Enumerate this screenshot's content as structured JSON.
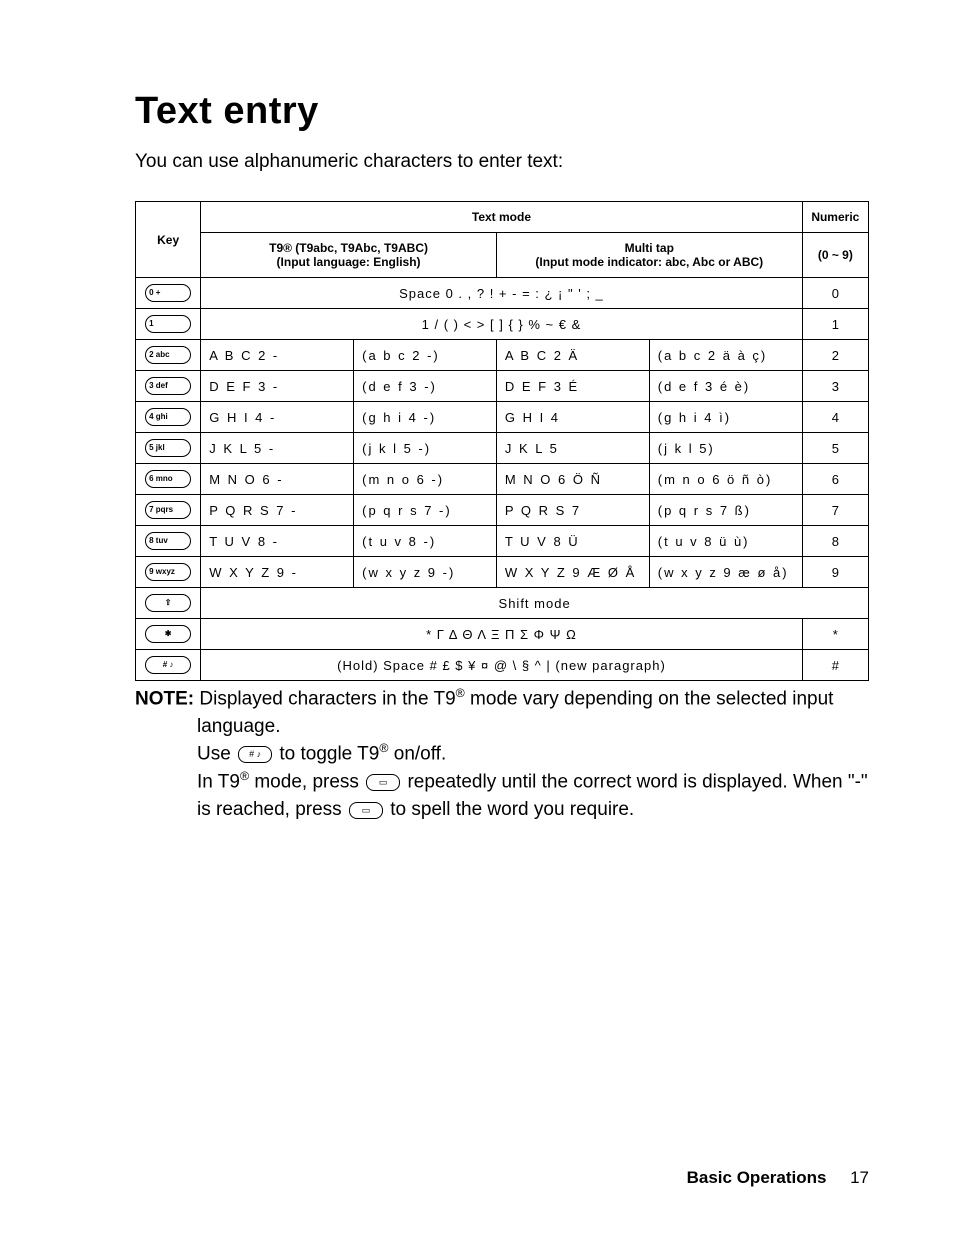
{
  "page": {
    "title": "Text entry",
    "intro": "You can use alphanumeric characters to enter text:",
    "footer_section": "Basic Operations",
    "footer_page": "17"
  },
  "headers": {
    "key": "Key",
    "textmode": "Text mode",
    "numeric": "Numeric",
    "t9_line1": "T9® (T9abc, T9Abc, T9ABC)",
    "t9_line2": "(Input language: English)",
    "multitap_line1": "Multi tap",
    "multitap_line2": "(Input mode indicator: abc, Abc or ABC)",
    "numeric_range": "(0 ~ 9)"
  },
  "keys": {
    "k0": "0   +",
    "k1": "1",
    "k2": "2  abc",
    "k3": "3  def",
    "k4": "4  ghi",
    "k5": "5  jkl",
    "k6": "6  mno",
    "k7": "7 pqrs",
    "k8": "8  tuv",
    "k9": "9 wxyz",
    "kshift": "⇧",
    "kstar": "✱",
    "khash": "# ♪"
  },
  "rows": {
    "r0_span": "Space 0 . , ? ! + - = : ¿ ¡ \" ' ; _",
    "r0_num": "0",
    "r1_span": "1 / ( ) < > [ ] { } % ~ € &",
    "r1_num": "1",
    "r2": {
      "t9u": "A B C 2 -",
      "t9l": "(a b c 2 -)",
      "mtu": "A B C 2 Ä",
      "mtl": "(a b c 2 ä à ç)",
      "num": "2"
    },
    "r3": {
      "t9u": "D E F 3 -",
      "t9l": "(d e f 3 -)",
      "mtu": "D E F 3 É",
      "mtl": "(d e f 3 é è)",
      "num": "3"
    },
    "r4": {
      "t9u": "G H I 4 -",
      "t9l": "(g h i 4 -)",
      "mtu": "G H I 4",
      "mtl": "(g h i 4 ì)",
      "num": "4"
    },
    "r5": {
      "t9u": "J K L 5 -",
      "t9l": "(j k l 5 -)",
      "mtu": "J K L 5",
      "mtl": "(j k l 5)",
      "num": "5"
    },
    "r6": {
      "t9u": "M N O 6 -",
      "t9l": "(m n o 6 -)",
      "mtu": "M N O 6 Ö Ñ",
      "mtl": "(m n o 6 ö ñ ò)",
      "num": "6"
    },
    "r7": {
      "t9u": "P Q R S 7 -",
      "t9l": "(p q r s 7 -)",
      "mtu": "P Q R S 7",
      "mtl": "(p q r s 7 ß)",
      "num": "7"
    },
    "r8": {
      "t9u": "T U V 8 -",
      "t9l": "(t u v 8 -)",
      "mtu": "T U V 8 Ü",
      "mtl": "(t u v 8 ü ù)",
      "num": "8"
    },
    "r9": {
      "t9u": "W X Y Z 9 -",
      "t9l": "(w x y z 9 -)",
      "mtu": "W X Y Z 9 Æ Ø Å",
      "mtl": "(w x y z 9 æ ø å)",
      "num": "9"
    },
    "rshift_span": "Shift mode",
    "rstar_span": "* Γ Δ Θ Λ Ξ Π Σ Φ Ψ Ω",
    "rstar_num": "*",
    "rhash_span": "(Hold) Space # £ $ ¥ ¤ @ \\ § ^ | (new paragraph)",
    "rhash_num": "#"
  },
  "note": {
    "label": "NOTE:",
    "l1a": "Displayed characters in the T9",
    "l1b": " mode vary depending on the selected input",
    "l2": "language.",
    "l3a": "Use ",
    "l3b": " to toggle T9",
    "l3c": " on/off.",
    "l4a": "In T9",
    "l4b": " mode, press ",
    "l4c": " repeatedly until the correct word is displayed. When \"-\"",
    "l5a": "is reached, press ",
    "l5b": " to spell the word you require.",
    "key_hash": "# ♪",
    "key_nav": "▭"
  },
  "style": {
    "page_bg": "#ffffff",
    "text_color": "#000000",
    "border_color": "#000000",
    "title_fontsize": 38,
    "body_fontsize": 19,
    "table_fontsize": 13
  }
}
